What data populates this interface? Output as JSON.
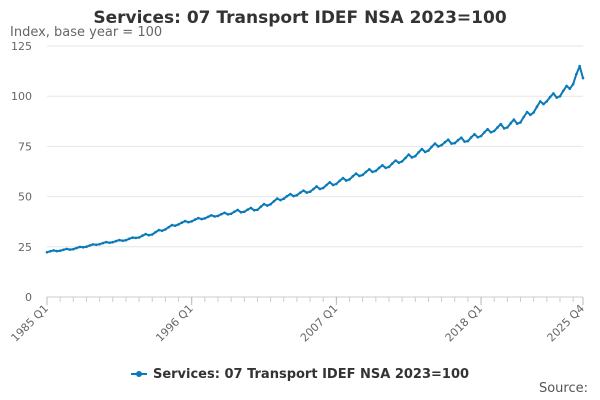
{
  "chart_data": {
    "type": "line",
    "title": "Services: 07 Transport IDEF NSA 2023=100",
    "ylabel": "Index, base year = 100",
    "xlabel": "",
    "ylim": [
      0,
      125
    ],
    "yticks": [
      0,
      25,
      50,
      75,
      100,
      125
    ],
    "xtick_labels": [
      "1985 Q1",
      "1996 Q1",
      "2007 Q1",
      "2018 Q1",
      "2025 Q4"
    ],
    "xtick_index": [
      0,
      44,
      88,
      132,
      163
    ],
    "grid": true,
    "legend_position": "bottom",
    "source_label": "Source:",
    "series": [
      {
        "name": "Services: 07 Transport IDEF NSA 2023=100",
        "color": "#0a7ab9",
        "keypoints": [
          [
            0,
            22.5
          ],
          [
            8,
            24.0
          ],
          [
            16,
            26.5
          ],
          [
            24,
            28.5
          ],
          [
            32,
            31.5
          ],
          [
            40,
            36.5
          ],
          [
            48,
            39.5
          ],
          [
            56,
            42.0
          ],
          [
            64,
            44.0
          ],
          [
            72,
            49.5
          ],
          [
            80,
            53.0
          ],
          [
            88,
            57.0
          ],
          [
            96,
            61.5
          ],
          [
            104,
            65.5
          ],
          [
            112,
            71.0
          ],
          [
            120,
            76.5
          ],
          [
            128,
            78.5
          ],
          [
            132,
            81.0
          ],
          [
            136,
            83.5
          ],
          [
            140,
            85.5
          ],
          [
            144,
            88.0
          ],
          [
            148,
            93.0
          ],
          [
            152,
            98.5
          ],
          [
            156,
            101.0
          ],
          [
            160,
            106.0
          ],
          [
            161,
            111.0
          ],
          [
            162,
            115.0
          ],
          [
            163,
            109.0
          ]
        ],
        "seasonal_amplitude": [
          0.6,
          1.0,
          1.6,
          2.0,
          2.4,
          3.0
        ]
      }
    ]
  }
}
